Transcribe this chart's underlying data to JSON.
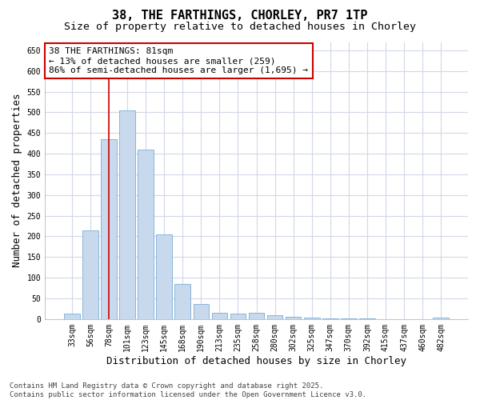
{
  "title": "38, THE FARTHINGS, CHORLEY, PR7 1TP",
  "subtitle": "Size of property relative to detached houses in Chorley",
  "xlabel": "Distribution of detached houses by size in Chorley",
  "ylabel": "Number of detached properties",
  "categories": [
    "33sqm",
    "56sqm",
    "78sqm",
    "101sqm",
    "123sqm",
    "145sqm",
    "168sqm",
    "190sqm",
    "213sqm",
    "235sqm",
    "258sqm",
    "280sqm",
    "302sqm",
    "325sqm",
    "347sqm",
    "370sqm",
    "392sqm",
    "415sqm",
    "437sqm",
    "460sqm",
    "482sqm"
  ],
  "values": [
    13,
    215,
    435,
    505,
    410,
    205,
    85,
    37,
    15,
    13,
    15,
    10,
    5,
    3,
    1,
    1,
    1,
    0,
    0,
    0,
    3
  ],
  "bar_color": "#c8d9ee",
  "bar_edge_color": "#7aadd4",
  "bar_width": 0.85,
  "vline_x": 2.0,
  "vline_color": "#cc0000",
  "ylim": [
    0,
    670
  ],
  "yticks": [
    0,
    50,
    100,
    150,
    200,
    250,
    300,
    350,
    400,
    450,
    500,
    550,
    600,
    650
  ],
  "annotation_box_text": "38 THE FARTHINGS: 81sqm\n← 13% of detached houses are smaller (259)\n86% of semi-detached houses are larger (1,695) →",
  "annotation_box_color": "#cc0000",
  "plot_bg_color": "#ffffff",
  "fig_bg_color": "#ffffff",
  "grid_color": "#d0d8e8",
  "footer_text": "Contains HM Land Registry data © Crown copyright and database right 2025.\nContains public sector information licensed under the Open Government Licence v3.0.",
  "title_fontsize": 11,
  "subtitle_fontsize": 9.5,
  "axis_label_fontsize": 9,
  "tick_fontsize": 7,
  "annotation_fontsize": 8,
  "footer_fontsize": 6.5
}
